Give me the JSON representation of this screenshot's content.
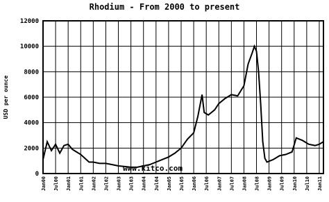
{
  "chart_data": {
    "type": "line",
    "title": "Rhodium - From 2000 to present",
    "y_label": "USD per ounce",
    "annotation": "www.kitco.com",
    "x": [
      "2000-01",
      "2000-03",
      "2000-05",
      "2000-07",
      "2000-09",
      "2000-11",
      "2001-01",
      "2001-03",
      "2001-05",
      "2001-07",
      "2001-09",
      "2001-11",
      "2002-01",
      "2002-04",
      "2002-07",
      "2002-10",
      "2003-01",
      "2003-04",
      "2003-07",
      "2003-10",
      "2004-01",
      "2004-04",
      "2004-07",
      "2004-10",
      "2005-01",
      "2005-04",
      "2005-07",
      "2005-10",
      "2006-01",
      "2006-03",
      "2006-05",
      "2006-06",
      "2006-08",
      "2006-11",
      "2007-01",
      "2007-04",
      "2007-07",
      "2007-10",
      "2008-01",
      "2008-03",
      "2008-05",
      "2008-06",
      "2008-07",
      "2008-08",
      "2008-09",
      "2008-10",
      "2008-11",
      "2008-12",
      "2009-03",
      "2009-06",
      "2009-09",
      "2009-12",
      "2010-02",
      "2010-05",
      "2010-08",
      "2010-11",
      "2011-01",
      "2011-03"
    ],
    "series": [
      {
        "name": "Rhodium",
        "color": "#000000",
        "values": [
          1100,
          2500,
          1800,
          2300,
          1600,
          2200,
          2300,
          1900,
          1700,
          1500,
          1200,
          900,
          900,
          800,
          800,
          700,
          600,
          550,
          500,
          500,
          600,
          700,
          900,
          1100,
          1300,
          1600,
          2000,
          2700,
          3200,
          4500,
          6200,
          4800,
          4600,
          5000,
          5500,
          5900,
          6200,
          6100,
          6900,
          8600,
          9500,
          10000,
          9600,
          8000,
          5500,
          2500,
          1200,
          900,
          1100,
          1400,
          1500,
          1700,
          2800,
          2600,
          2300,
          2200,
          2300,
          2500
        ]
      }
    ],
    "ylim": [
      0,
      12000
    ],
    "yticks": [
      0,
      2000,
      4000,
      6000,
      8000,
      10000,
      12000
    ],
    "xlim": [
      "2000-01",
      "2011-03"
    ],
    "xticks": [
      {
        "value": "2000-01",
        "label": "Jan00"
      },
      {
        "value": "2000-07",
        "label": "Jul00"
      },
      {
        "value": "2001-01",
        "label": "Jan01"
      },
      {
        "value": "2001-07",
        "label": "Jul01"
      },
      {
        "value": "2002-01",
        "label": "Jan02"
      },
      {
        "value": "2002-07",
        "label": "Jul02"
      },
      {
        "value": "2003-01",
        "label": "Jan03"
      },
      {
        "value": "2003-07",
        "label": "Jul03"
      },
      {
        "value": "2004-01",
        "label": "Jan04"
      },
      {
        "value": "2004-07",
        "label": "Jul04"
      },
      {
        "value": "2005-01",
        "label": "Jan05"
      },
      {
        "value": "2005-07",
        "label": "Jul05"
      },
      {
        "value": "2006-01",
        "label": "Jan06"
      },
      {
        "value": "2006-07",
        "label": "Jul06"
      },
      {
        "value": "2007-01",
        "label": "Jan07"
      },
      {
        "value": "2007-07",
        "label": "Jul07"
      },
      {
        "value": "2008-01",
        "label": "Jan08"
      },
      {
        "value": "2008-07",
        "label": "Jul08"
      },
      {
        "value": "2009-01",
        "label": "Jan09"
      },
      {
        "value": "2009-07",
        "label": "Jul09"
      },
      {
        "value": "2010-01",
        "label": "Jan10"
      },
      {
        "value": "2010-07",
        "label": "Jul10"
      },
      {
        "value": "2011-01",
        "label": "Jan11"
      }
    ],
    "grid": true
  }
}
